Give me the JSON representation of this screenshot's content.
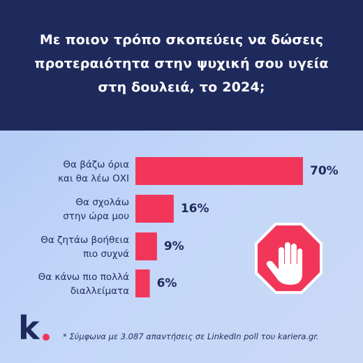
{
  "title": "Με ποιον τρόπο σκοπεύεις να δώσεις\nπροτεραιότητα στην ψυχική σου υγεία\nστη δουλειά, το 2024;",
  "footnote": "* Σύμφωνα με 3.087 απαντήσεις σε LinkedIn poll του kariera.gr.",
  "logo": {
    "text": "k"
  },
  "colors": {
    "header": "#1f2a5c",
    "bar": "#f2365a",
    "text": "#1f2a5c",
    "stop_sign": "#f2365a",
    "hand": "#ffffff"
  },
  "icons": [
    "stop-sign-hand-icon"
  ],
  "chart_data": {
    "type": "bar",
    "orientation": "horizontal",
    "title": "Με ποιον τρόπο σκοπεύεις να δώσεις προτεραιότητα στην ψυχική σου υγεία στη δουλειά, το 2024;",
    "categories": [
      "Θα βάζω όρια\nκαι θα λέω ΟΧΙ",
      "Θα σχολάω\nστην ώρα μου",
      "Θα ζητάω βοήθεια\nπιο συχνά",
      "Θα κάνω πιο πολλά\nδιαλλείματα"
    ],
    "values": [
      70,
      16,
      9,
      6
    ],
    "value_labels": [
      "70%",
      "16%",
      "9%",
      "6%"
    ],
    "unit": "%",
    "grid": false
  }
}
